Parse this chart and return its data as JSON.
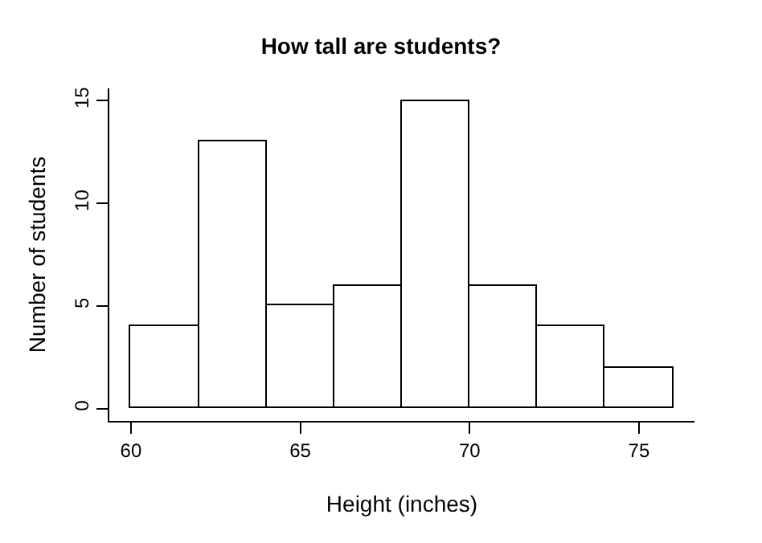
{
  "chart_data": {
    "type": "histogram",
    "title": "How tall are students?",
    "xlabel": "Height (inches)",
    "ylabel": "Number of students",
    "bins": [
      60,
      62,
      64,
      66,
      68,
      70,
      72,
      74,
      76
    ],
    "values": [
      4,
      13,
      5,
      6,
      15,
      6,
      4,
      2
    ],
    "color": "#ffffff",
    "xlim": [
      59.36,
      76.64
    ],
    "xticks": [
      60,
      65,
      70,
      75
    ],
    "ylim": [
      -0.6,
      15.6
    ],
    "yticks": [
      0,
      5,
      10,
      15
    ]
  }
}
